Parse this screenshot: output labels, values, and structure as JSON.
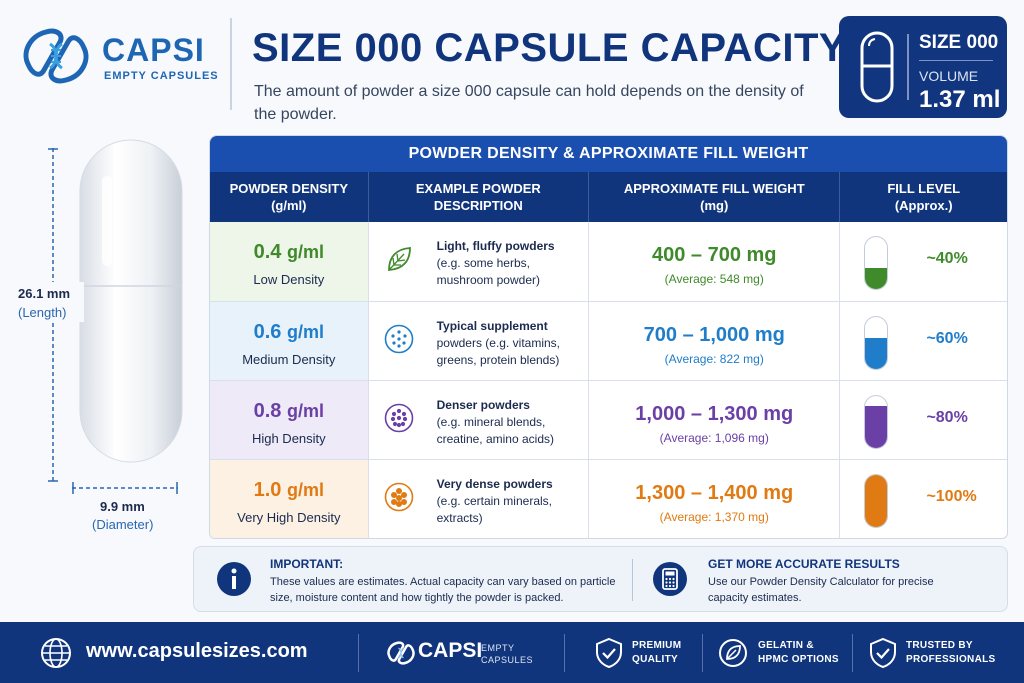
{
  "brand": {
    "name": "CAPSI",
    "tagline": "EMPTY CAPSULES",
    "primary_color": "#11357d",
    "accent_color": "#1e66b3"
  },
  "header": {
    "title": "SIZE 000 CAPSULE CAPACITY",
    "subtitle": "The amount of powder a size 000 capsule can hold depends on the density of the powder."
  },
  "size_box": {
    "size_label": "SIZE 000",
    "volume_label": "VOLUME",
    "volume_value": "1.37 ml",
    "icon": "capsule-icon"
  },
  "capsule_dims": {
    "length_value": "26.1 mm",
    "length_label": "(Length)",
    "diameter_value": "9.9 mm",
    "diameter_label": "(Diameter)"
  },
  "table": {
    "title": "POWDER DENSITY & APPROXIMATE FILL WEIGHT",
    "headers": {
      "density": [
        "POWDER DENSITY",
        "(g/ml)"
      ],
      "description": [
        "EXAMPLE POWDER",
        "DESCRIPTION"
      ],
      "fill_weight": [
        "APPROXIMATE FILL WEIGHT",
        "(mg)"
      ],
      "fill_level": [
        "FILL LEVEL",
        "(Approx.)"
      ]
    },
    "rows": [
      {
        "density_value": "0.4",
        "density_unit": "g/ml",
        "density_label": "Low Density",
        "desc_lines": [
          "Light, fluffy powders",
          "(e.g. some herbs,",
          "mushroom powder)"
        ],
        "icon": "leaf-icon",
        "fill_range": "400 – 700 mg",
        "fill_avg": "(Average: 548 mg)",
        "fill_pct": "~40%",
        "fill_fraction": 0.4,
        "color": "#3f8a2a",
        "bg": "#eef6ea"
      },
      {
        "density_value": "0.6",
        "density_unit": "g/ml",
        "density_label": "Medium Density",
        "desc_lines": [
          "Typical supplement",
          "powders (e.g. vitamins,",
          "greens, protein blends)"
        ],
        "icon": "dots-icon",
        "fill_range": "700 – 1,000 mg",
        "fill_avg": "(Average: 822 mg)",
        "fill_pct": "~60%",
        "fill_fraction": 0.6,
        "color": "#1f7dc9",
        "bg": "#e8f2fb"
      },
      {
        "density_value": "0.8",
        "density_unit": "g/ml",
        "density_label": "High Density",
        "desc_lines": [
          "Denser powders",
          "(e.g. mineral blends,",
          "creatine, amino acids)"
        ],
        "icon": "dense-dots-icon",
        "fill_range": "1,000 – 1,300 mg",
        "fill_avg": "(Average: 1,096 mg)",
        "fill_pct": "~80%",
        "fill_fraction": 0.8,
        "color": "#6a3fa6",
        "bg": "#efeaf7"
      },
      {
        "density_value": "1.0",
        "density_unit": "g/ml",
        "density_label": "Very High Density",
        "desc_lines": [
          "Very dense powders",
          "(e.g. certain minerals,",
          "extracts)"
        ],
        "icon": "cluster-icon",
        "fill_range": "1,300 – 1,400 mg",
        "fill_avg": "(Average: 1,370 mg)",
        "fill_pct": "~100%",
        "fill_fraction": 1.0,
        "color": "#e07a12",
        "bg": "#fdf1e4"
      }
    ]
  },
  "notes": {
    "important_title": "IMPORTANT:",
    "important_text": "These values are estimates. Actual capacity can vary based on particle size, moisture content and how tightly the powder is packed.",
    "important_icon": "info-icon",
    "accurate_title": "GET MORE ACCURATE RESULTS",
    "accurate_text": "Use our Powder Density Calculator for precise capacity estimates.",
    "accurate_icon": "calculator-icon"
  },
  "footer": {
    "url": "www.capsulesizes.com",
    "logo_word": "CAPSI",
    "logo_sub": [
      "EMPTY",
      "CAPSULES"
    ],
    "badges": [
      {
        "lines": [
          "PREMIUM",
          "QUALITY"
        ],
        "icon": "shield-check-icon"
      },
      {
        "lines": [
          "GELATIN &",
          "HPMC OPTIONS"
        ],
        "icon": "leaf-badge-icon"
      },
      {
        "lines": [
          "TRUSTED BY",
          "PROFESSIONALS"
        ],
        "icon": "shield-check-icon"
      }
    ]
  }
}
